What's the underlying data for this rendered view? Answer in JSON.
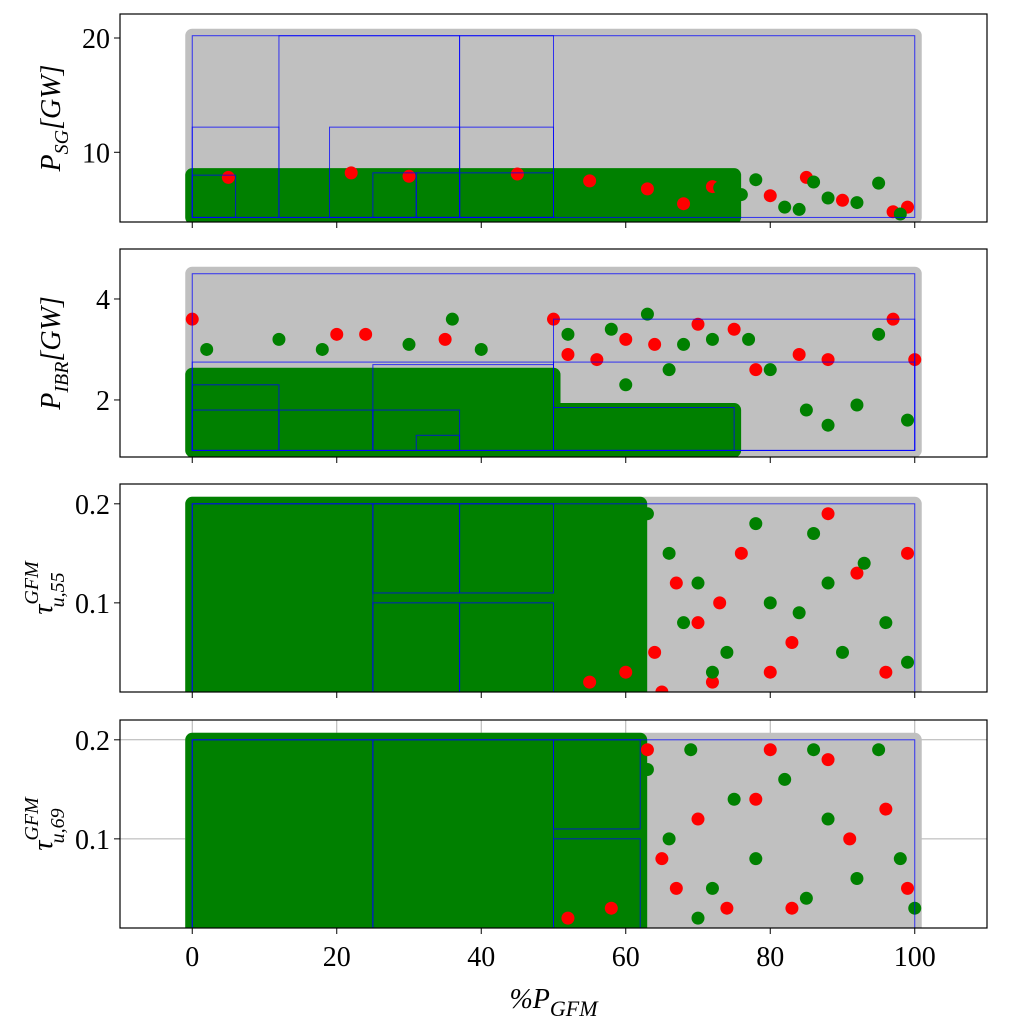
{
  "chart_data": [
    {
      "type": "scatter",
      "ylabel": "P",
      "ylabel_sub": "SG",
      "ylabel_rest": "[GW]",
      "xlim": [
        -10,
        110
      ],
      "xticks": [
        0,
        20,
        40,
        60,
        80,
        100
      ],
      "ylim": [
        3.9,
        22.1
      ],
      "yticks": [
        10,
        20
      ],
      "sampled_range": [
        0,
        100,
        4.3,
        20.2
      ],
      "sampled_color": "#c0c0c0",
      "dense_ranges": [
        [
          0,
          75,
          4.3,
          8
        ]
      ],
      "dense_color": "#008000",
      "box_color": "#0000ff",
      "boxes": [
        [
          0,
          100,
          4.3,
          20.2
        ],
        [
          0,
          12,
          4.3,
          12.2
        ],
        [
          0,
          6,
          4.3,
          8
        ],
        [
          12,
          37,
          4.3,
          20.2
        ],
        [
          19,
          37,
          4.3,
          12.2
        ],
        [
          25,
          31,
          4.3,
          8.2
        ],
        [
          31,
          37,
          4.3,
          8.2
        ],
        [
          37,
          50,
          4.3,
          20.2
        ],
        [
          37,
          50,
          4.3,
          12.2
        ],
        [
          37,
          50,
          4.3,
          8.2
        ]
      ],
      "series": [
        {
          "color": "#ff0000",
          "x": [
            5,
            22,
            30,
            45,
            55,
            63,
            68,
            72,
            80,
            85,
            90,
            97,
            99
          ],
          "values": [
            7.8,
            8.2,
            7.9,
            8.1,
            7.5,
            6.8,
            5.5,
            7.0,
            6.2,
            7.8,
            5.8,
            4.8,
            5.2
          ]
        },
        {
          "color": "#008000",
          "x": [
            60,
            65,
            70,
            73,
            78,
            82,
            86,
            88,
            92,
            95,
            98,
            76,
            84
          ],
          "values": [
            6.5,
            7.2,
            5.8,
            6.9,
            7.6,
            5.2,
            7.4,
            6.0,
            5.6,
            7.3,
            4.6,
            6.3,
            5.0
          ]
        }
      ],
      "grid": false
    },
    {
      "type": "scatter",
      "ylabel": "P",
      "ylabel_sub": "IBR",
      "ylabel_rest": "[GW]",
      "xlim": [
        -10,
        110
      ],
      "xticks": [
        0,
        20,
        40,
        60,
        80,
        100
      ],
      "ylim": [
        0.87,
        4.99
      ],
      "yticks": [
        2,
        4
      ],
      "sampled_range": [
        0,
        100,
        1.0,
        4.5
      ],
      "sampled_color": "#c0c0c0",
      "dense_ranges": [
        [
          0,
          50,
          1.0,
          2.5
        ],
        [
          50,
          75,
          1.0,
          1.8
        ]
      ],
      "dense_color": "#008000",
      "box_color": "#0000ff",
      "boxes": [
        [
          0,
          100,
          1.0,
          4.5
        ],
        [
          50,
          100,
          1.0,
          3.6
        ],
        [
          50,
          100,
          1.0,
          2.75
        ],
        [
          0,
          50,
          1.0,
          2.75
        ],
        [
          0,
          12,
          1.0,
          2.3
        ],
        [
          0,
          12,
          1.0,
          1.8
        ],
        [
          12,
          25,
          1.0,
          1.8
        ],
        [
          25,
          50,
          1.0,
          2.7
        ],
        [
          25,
          37,
          1.0,
          1.8
        ],
        [
          31,
          37,
          1.0,
          1.3
        ],
        [
          50,
          75,
          1.0,
          1.85
        ]
      ],
      "series": [
        {
          "color": "#ff0000",
          "x": [
            0,
            20,
            24,
            35,
            50,
            52,
            56,
            60,
            64,
            70,
            75,
            78,
            84,
            88,
            97,
            100
          ],
          "values": [
            3.6,
            3.3,
            3.3,
            3.2,
            3.6,
            2.9,
            2.8,
            3.2,
            3.1,
            3.5,
            3.4,
            2.6,
            2.9,
            2.8,
            3.6,
            2.8
          ]
        },
        {
          "color": "#008000",
          "x": [
            2,
            12,
            18,
            30,
            36,
            40,
            52,
            58,
            63,
            68,
            72,
            77,
            80,
            85,
            88,
            92,
            95,
            99,
            60,
            66
          ],
          "values": [
            3.0,
            3.2,
            3.0,
            3.1,
            3.6,
            3.0,
            3.3,
            3.4,
            3.7,
            3.1,
            3.2,
            3.2,
            2.6,
            1.8,
            1.5,
            1.9,
            3.3,
            1.6,
            2.3,
            2.6
          ]
        }
      ],
      "grid": false
    },
    {
      "type": "scatter",
      "ylabel": "τ",
      "ylabel_sup": "GFM",
      "ylabel_sub": "u,55",
      "xlim": [
        -10,
        110
      ],
      "xticks": [
        0,
        20,
        40,
        60,
        80,
        100
      ],
      "ylim": [
        0.01,
        0.22
      ],
      "yticks": [
        0.1,
        0.2
      ],
      "sampled_range": [
        0,
        100,
        0.01,
        0.2
      ],
      "sampled_color": "#c0c0c0",
      "dense_ranges": [
        [
          0,
          62,
          0.01,
          0.2
        ]
      ],
      "dense_color": "#008000",
      "box_color": "#0000ff",
      "boxes": [
        [
          0,
          100,
          0.01,
          0.2
        ],
        [
          0,
          25,
          0.01,
          0.2
        ],
        [
          25,
          37,
          0.11,
          0.2
        ],
        [
          37,
          50,
          0.11,
          0.2
        ],
        [
          25,
          37,
          0.01,
          0.1
        ],
        [
          37,
          50,
          0.01,
          0.1
        ]
      ],
      "series": [
        {
          "color": "#ff0000",
          "x": [
            55,
            60,
            64,
            67,
            70,
            72,
            76,
            80,
            83,
            88,
            92,
            96,
            99,
            65,
            73
          ],
          "values": [
            0.02,
            0.03,
            0.05,
            0.12,
            0.08,
            0.02,
            0.15,
            0.03,
            0.06,
            0.19,
            0.13,
            0.03,
            0.15,
            0.01,
            0.1
          ]
        },
        {
          "color": "#008000",
          "x": [
            63,
            66,
            68,
            70,
            74,
            78,
            80,
            84,
            86,
            90,
            93,
            96,
            99,
            72,
            88
          ],
          "values": [
            0.19,
            0.15,
            0.08,
            0.12,
            0.05,
            0.18,
            0.1,
            0.09,
            0.17,
            0.05,
            0.14,
            0.08,
            0.04,
            0.03,
            0.12
          ]
        }
      ],
      "grid": false
    },
    {
      "type": "scatter",
      "ylabel": "τ",
      "ylabel_sup": "GFM",
      "ylabel_sub": "u,69",
      "xlabel": "%P",
      "xlabel_sub": "GFM",
      "xlim": [
        -10,
        110
      ],
      "xticks": [
        0,
        20,
        40,
        60,
        80,
        100
      ],
      "ylim": [
        0.01,
        0.22
      ],
      "yticks": [
        0.1,
        0.2
      ],
      "sampled_range": [
        0,
        100,
        0.01,
        0.2
      ],
      "sampled_color": "#c0c0c0",
      "dense_ranges": [
        [
          0,
          62,
          0.01,
          0.2
        ]
      ],
      "dense_color": "#008000",
      "box_color": "#0000ff",
      "boxes": [
        [
          0,
          100,
          0.01,
          0.2
        ],
        [
          0,
          25,
          0.01,
          0.2
        ],
        [
          25,
          50,
          0.01,
          0.2
        ],
        [
          50,
          62,
          0.11,
          0.2
        ],
        [
          50,
          62,
          0.01,
          0.1
        ]
      ],
      "series": [
        {
          "color": "#ff0000",
          "x": [
            52,
            58,
            63,
            67,
            70,
            74,
            78,
            83,
            88,
            91,
            96,
            99,
            65,
            80
          ],
          "values": [
            0.02,
            0.03,
            0.19,
            0.05,
            0.12,
            0.03,
            0.14,
            0.03,
            0.18,
            0.1,
            0.13,
            0.05,
            0.08,
            0.19
          ]
        },
        {
          "color": "#008000",
          "x": [
            63,
            66,
            69,
            72,
            75,
            78,
            82,
            85,
            88,
            92,
            95,
            98,
            70,
            86,
            100
          ],
          "values": [
            0.17,
            0.1,
            0.19,
            0.05,
            0.14,
            0.08,
            0.16,
            0.04,
            0.12,
            0.06,
            0.19,
            0.08,
            0.02,
            0.19,
            0.03
          ]
        }
      ],
      "grid": true
    }
  ]
}
